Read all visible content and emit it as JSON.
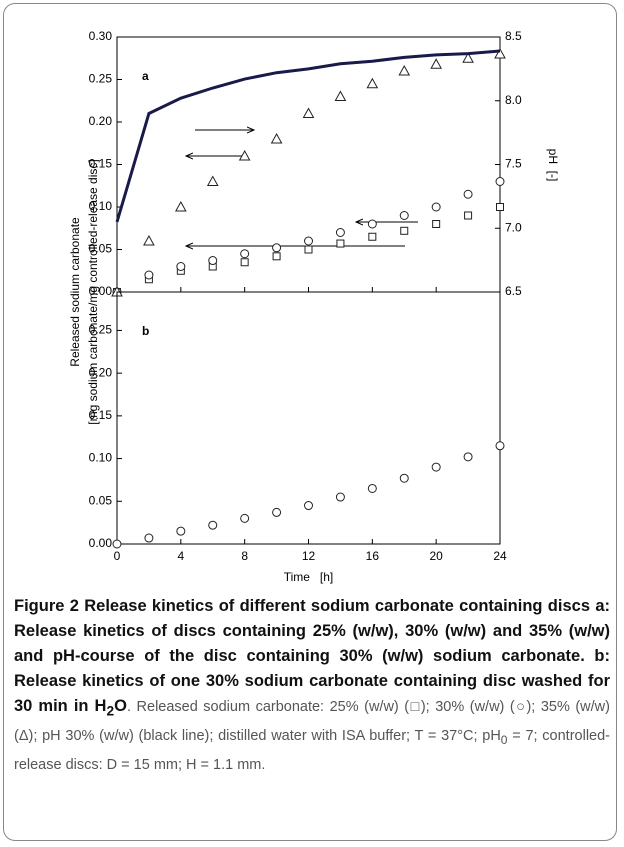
{
  "chart_data": [
    {
      "type": "scatter",
      "panel_label": "a",
      "ylabel": [
        "Released sodium carbonate",
        "[mg sodium carbonate/mg controlled-release disc]"
      ],
      "y2label": "pH  [-]",
      "x": [
        0,
        2,
        4,
        6,
        8,
        10,
        12,
        14,
        16,
        18,
        20,
        22,
        24
      ],
      "xlim": [
        0,
        24
      ],
      "xticks": [
        0,
        4,
        8,
        12,
        16,
        20,
        24
      ],
      "ylim": [
        0,
        0.3
      ],
      "yticks": [
        {
          "value": 0,
          "label": "0.00"
        },
        0.05,
        {
          "value": 0.1,
          "label": "0.10"
        },
        0.15,
        {
          "value": 0.2,
          "label": "0.20"
        },
        0.25,
        {
          "value": 0.3,
          "label": "0.30"
        }
      ],
      "y2lim": [
        6.5,
        8.5
      ],
      "y2ticks": [
        6.5,
        {
          "value": 7,
          "label": "7.0"
        },
        7.5,
        {
          "value": 8,
          "label": "8.0"
        },
        8.5
      ],
      "series": [
        {
          "name": "25% (w/w)",
          "marker": "square",
          "color": "#222",
          "values": [
            0,
            0.015,
            0.025,
            0.03,
            0.035,
            0.042,
            0.05,
            0.057,
            0.065,
            0.072,
            0.08,
            0.09,
            0.1
          ]
        },
        {
          "name": "30% (w/w)",
          "marker": "circle",
          "color": "#222",
          "values": [
            0,
            0.02,
            0.03,
            0.037,
            0.045,
            0.052,
            0.06,
            0.07,
            0.08,
            0.09,
            0.1,
            0.115,
            0.13
          ]
        },
        {
          "name": "35% (w/w)",
          "marker": "triangle",
          "color": "#222",
          "values": [
            0,
            0.06,
            0.1,
            0.13,
            0.16,
            0.18,
            0.21,
            0.23,
            0.245,
            0.26,
            0.268,
            0.275,
            0.28
          ]
        },
        {
          "name": "pH 30% (w/w)",
          "marker": "line",
          "color": "#1a1a4a",
          "axis": "y2",
          "values": [
            7.05,
            7.9,
            8.02,
            8.1,
            8.17,
            8.22,
            8.25,
            8.29,
            8.31,
            8.34,
            8.36,
            8.37,
            8.39
          ]
        }
      ]
    },
    {
      "type": "scatter",
      "panel_label": "b",
      "xlabel": "Time   [h]",
      "x": [
        0,
        2,
        4,
        6,
        8,
        10,
        12,
        14,
        16,
        18,
        20,
        22,
        24
      ],
      "xlim": [
        0,
        24
      ],
      "xticks": [
        0,
        4,
        8,
        12,
        16,
        20,
        24
      ],
      "ylim": [
        0,
        0.295
      ],
      "yticks": [
        {
          "value": 0,
          "label": "0.00"
        },
        0.05,
        {
          "value": 0.1,
          "label": "0.10"
        },
        0.15,
        {
          "value": 0.2,
          "label": "0.20"
        },
        0.25
      ],
      "series": [
        {
          "name": "30% (w/w) washed",
          "marker": "circle",
          "color": "#222",
          "values": [
            0,
            0.007,
            0.015,
            0.022,
            0.03,
            0.037,
            0.045,
            0.055,
            0.065,
            0.077,
            0.09,
            0.102,
            0.115
          ]
        }
      ]
    }
  ],
  "caption": {
    "bold_1": "Figure 2 Release kinetics of different sodium carbonate containing discs a: Release kinetics of discs containing 25% (w/w), 30% (w/w) and 35% (w/w) and pH-course of the disc containing 30% (w/w) sodium carbonate. b: Release kinetics of one 30% sodium carbonate containing disc washed for 30 min in H",
    "bold_sub": "2",
    "bold_2": "O",
    "text_1": ". Released sodium carbonate: 25% (w/w) (□); 30% (w/w) (○); 35% (w/w) (Δ); pH 30% (w/w) (black line); distilled water with ISA buffer; T = 37°C; pH",
    "text_sub": "0",
    "text_2": " = 7; controlled-release discs: D = 15 mm; H = 1.1 mm."
  }
}
